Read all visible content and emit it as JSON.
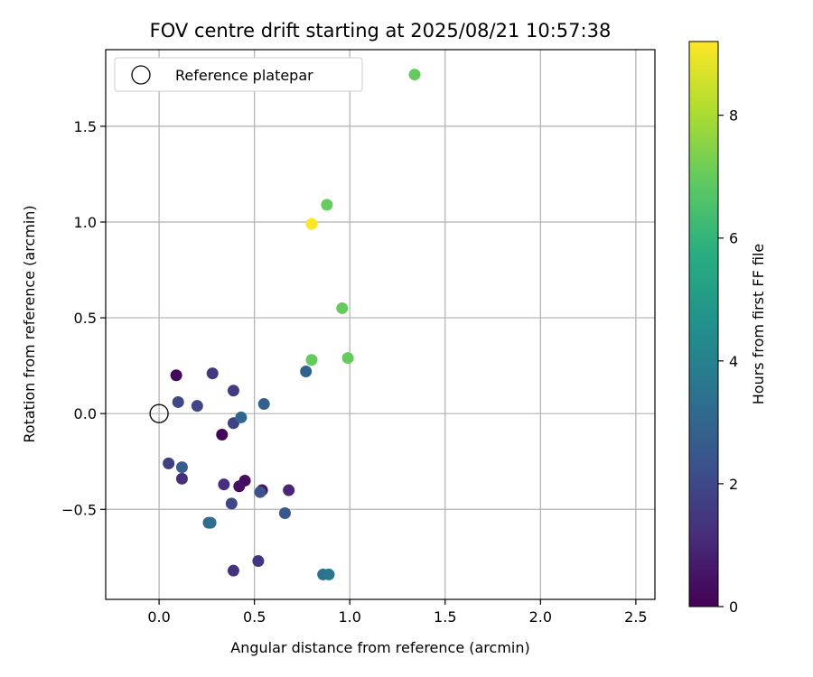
{
  "chart_data": {
    "type": "scatter",
    "title": "FOV centre drift starting at 2025/08/21 10:57:38",
    "xlabel": "Angular distance from reference (arcmin)",
    "ylabel": "Rotation from reference (arcmin)",
    "xlim": [
      -0.28,
      2.6
    ],
    "ylim": [
      -0.97,
      1.9
    ],
    "xticks": [
      0.0,
      0.5,
      1.0,
      1.5,
      2.0,
      2.5
    ],
    "xtick_labels": [
      "0.0",
      "0.5",
      "1.0",
      "1.5",
      "2.0",
      "2.5"
    ],
    "yticks": [
      -0.5,
      0.0,
      0.5,
      1.0,
      1.5
    ],
    "ytick_labels": [
      "−0.5",
      "0.0",
      "0.5",
      "1.0",
      "1.5"
    ],
    "grid": true,
    "legend": {
      "placement": "top-left",
      "entries": [
        "Reference platepar"
      ]
    },
    "reference_point": {
      "x": 0.0,
      "y": 0.0
    },
    "colorbar": {
      "label": "Hours from first FF file",
      "colormap": "viridis",
      "range": [
        0,
        9.2
      ],
      "ticks": [
        0,
        2,
        4,
        6,
        8
      ],
      "tick_labels": [
        "0",
        "2",
        "4",
        "6",
        "8"
      ]
    },
    "points": [
      {
        "x": 0.09,
        "y": 0.2,
        "c": 0.2
      },
      {
        "x": 0.33,
        "y": -0.11,
        "c": 0.1
      },
      {
        "x": 0.45,
        "y": -0.35,
        "c": 0.3
      },
      {
        "x": 0.42,
        "y": -0.38,
        "c": 0.4
      },
      {
        "x": 0.54,
        "y": -0.4,
        "c": 0.5
      },
      {
        "x": 0.68,
        "y": -0.4,
        "c": 1.0
      },
      {
        "x": 0.34,
        "y": -0.37,
        "c": 1.2
      },
      {
        "x": 0.12,
        "y": -0.34,
        "c": 1.2
      },
      {
        "x": 0.39,
        "y": -0.82,
        "c": 1.3
      },
      {
        "x": 0.52,
        "y": -0.77,
        "c": 1.4
      },
      {
        "x": 0.28,
        "y": 0.21,
        "c": 1.5
      },
      {
        "x": 0.39,
        "y": 0.12,
        "c": 1.6
      },
      {
        "x": 0.05,
        "y": -0.26,
        "c": 1.7
      },
      {
        "x": 0.39,
        "y": -0.05,
        "c": 1.8
      },
      {
        "x": 0.2,
        "y": 0.04,
        "c": 1.9
      },
      {
        "x": 0.1,
        "y": 0.06,
        "c": 2.0
      },
      {
        "x": 0.38,
        "y": -0.47,
        "c": 2.0
      },
      {
        "x": 0.53,
        "y": -0.41,
        "c": 2.3
      },
      {
        "x": 0.66,
        "y": -0.52,
        "c": 2.5
      },
      {
        "x": 0.12,
        "y": -0.28,
        "c": 2.7
      },
      {
        "x": 0.55,
        "y": 0.05,
        "c": 2.8
      },
      {
        "x": 0.77,
        "y": 0.22,
        "c": 2.9
      },
      {
        "x": 0.43,
        "y": -0.02,
        "c": 3.0
      },
      {
        "x": 0.26,
        "y": -0.57,
        "c": 3.2
      },
      {
        "x": 0.27,
        "y": -0.57,
        "c": 3.3
      },
      {
        "x": 0.86,
        "y": -0.84,
        "c": 3.4
      },
      {
        "x": 0.89,
        "y": -0.84,
        "c": 3.6
      },
      {
        "x": 1.34,
        "y": 1.77,
        "c": 7.0
      },
      {
        "x": 0.88,
        "y": 1.09,
        "c": 7.0
      },
      {
        "x": 0.96,
        "y": 0.55,
        "c": 7.0
      },
      {
        "x": 0.8,
        "y": 0.28,
        "c": 7.0
      },
      {
        "x": 0.99,
        "y": 0.29,
        "c": 7.0
      },
      {
        "x": 0.8,
        "y": 0.99,
        "c": 9.2
      }
    ]
  }
}
